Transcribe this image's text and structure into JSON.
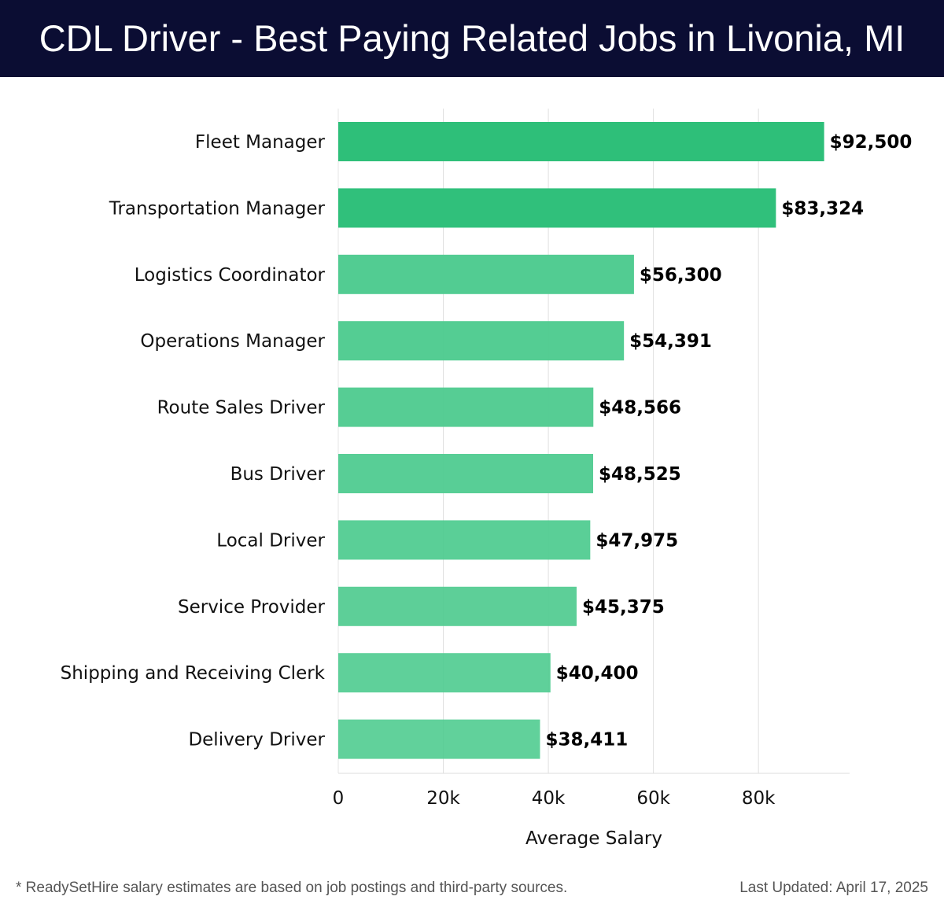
{
  "header": {
    "title": "CDL Driver - Best Paying Related Jobs in Livonia, MI"
  },
  "chart_data": {
    "type": "bar",
    "orientation": "horizontal",
    "categories": [
      "Fleet Manager",
      "Transportation Manager",
      "Logistics Coordinator",
      "Operations Manager",
      "Route Sales Driver",
      "Bus Driver",
      "Local Driver",
      "Service Provider",
      "Shipping and Receiving Clerk",
      "Delivery Driver"
    ],
    "values": [
      92500,
      83324,
      56300,
      54391,
      48566,
      48525,
      47975,
      45375,
      40400,
      38411
    ],
    "value_labels": [
      "$92,500",
      "$83,324",
      "$56,300",
      "$54,391",
      "$48,566",
      "$48,525",
      "$47,975",
      "$45,375",
      "$40,400",
      "$38,411"
    ],
    "xlabel": "Average Salary",
    "xticks": [
      0,
      20000,
      40000,
      60000,
      80000
    ],
    "xtick_labels": [
      "0",
      "20k",
      "40k",
      "60k",
      "80k"
    ],
    "xlim": [
      0,
      97125
    ],
    "grid": "vertical",
    "colors": {
      "top_bars": "#2ebf79",
      "other_bars": "#4ecb8f",
      "gridline": "#e0e0e0",
      "header_bg": "#0b0d33"
    }
  },
  "footer": {
    "note": "* ReadySetHire salary estimates are based on job postings and third-party sources.",
    "updated": "Last Updated: April 17, 2025"
  }
}
